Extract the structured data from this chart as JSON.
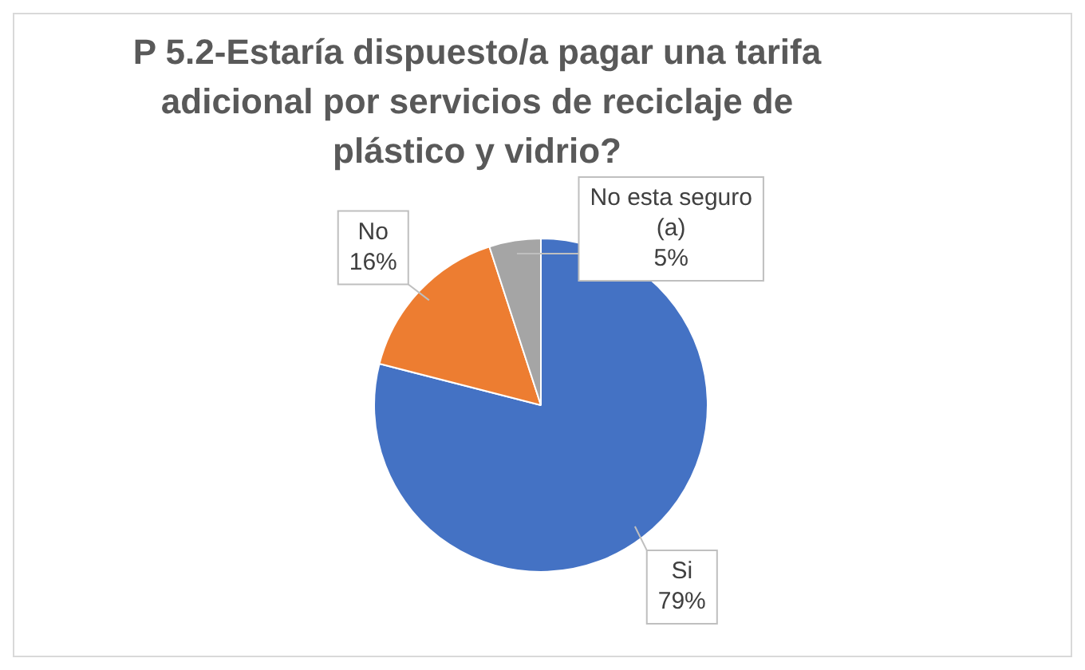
{
  "chart_data": {
    "type": "pie",
    "title": "P 5.2-Estaría dispuesto/a pagar una tarifa adicional por servicios de reciclaje de plástico y vidrio?",
    "categories": [
      "Si",
      "No",
      "No esta seguro (a)"
    ],
    "values": [
      79,
      16,
      5
    ],
    "colors": [
      "#4472c4",
      "#ed7d31",
      "#a5a5a5"
    ],
    "value_labels": [
      "79%",
      "16%",
      "5%"
    ],
    "legend": false
  }
}
